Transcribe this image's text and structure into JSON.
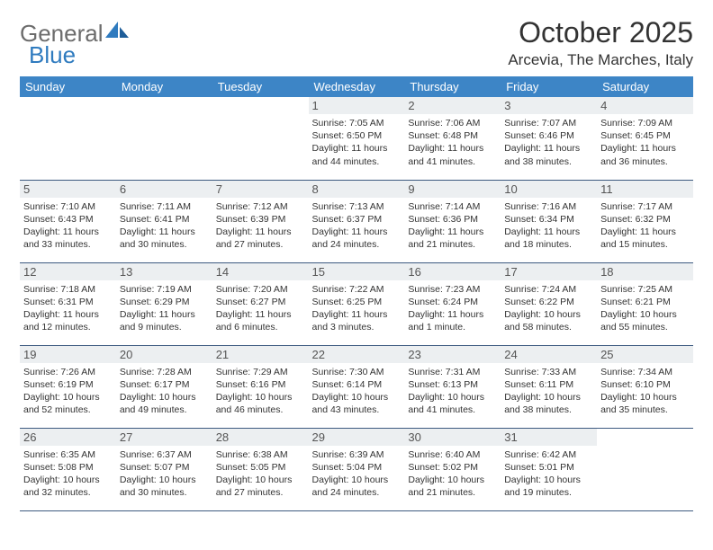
{
  "logo": {
    "part1": "General",
    "part2": "Blue"
  },
  "title": "October 2025",
  "subtitle": "Arcevia, The Marches, Italy",
  "colors": {
    "header_bg": "#3d85c6",
    "header_fg": "#ffffff",
    "daynum_bg": "#eceff1",
    "border": "#3d5a80",
    "logo_gray": "#6c6c6c",
    "logo_blue": "#2f7bbf"
  },
  "day_headers": [
    "Sunday",
    "Monday",
    "Tuesday",
    "Wednesday",
    "Thursday",
    "Friday",
    "Saturday"
  ],
  "weeks": [
    [
      null,
      null,
      null,
      {
        "n": "1",
        "sr": "7:05 AM",
        "ss": "6:50 PM",
        "dl": "11 hours and 44 minutes."
      },
      {
        "n": "2",
        "sr": "7:06 AM",
        "ss": "6:48 PM",
        "dl": "11 hours and 41 minutes."
      },
      {
        "n": "3",
        "sr": "7:07 AM",
        "ss": "6:46 PM",
        "dl": "11 hours and 38 minutes."
      },
      {
        "n": "4",
        "sr": "7:09 AM",
        "ss": "6:45 PM",
        "dl": "11 hours and 36 minutes."
      }
    ],
    [
      {
        "n": "5",
        "sr": "7:10 AM",
        "ss": "6:43 PM",
        "dl": "11 hours and 33 minutes."
      },
      {
        "n": "6",
        "sr": "7:11 AM",
        "ss": "6:41 PM",
        "dl": "11 hours and 30 minutes."
      },
      {
        "n": "7",
        "sr": "7:12 AM",
        "ss": "6:39 PM",
        "dl": "11 hours and 27 minutes."
      },
      {
        "n": "8",
        "sr": "7:13 AM",
        "ss": "6:37 PM",
        "dl": "11 hours and 24 minutes."
      },
      {
        "n": "9",
        "sr": "7:14 AM",
        "ss": "6:36 PM",
        "dl": "11 hours and 21 minutes."
      },
      {
        "n": "10",
        "sr": "7:16 AM",
        "ss": "6:34 PM",
        "dl": "11 hours and 18 minutes."
      },
      {
        "n": "11",
        "sr": "7:17 AM",
        "ss": "6:32 PM",
        "dl": "11 hours and 15 minutes."
      }
    ],
    [
      {
        "n": "12",
        "sr": "7:18 AM",
        "ss": "6:31 PM",
        "dl": "11 hours and 12 minutes."
      },
      {
        "n": "13",
        "sr": "7:19 AM",
        "ss": "6:29 PM",
        "dl": "11 hours and 9 minutes."
      },
      {
        "n": "14",
        "sr": "7:20 AM",
        "ss": "6:27 PM",
        "dl": "11 hours and 6 minutes."
      },
      {
        "n": "15",
        "sr": "7:22 AM",
        "ss": "6:25 PM",
        "dl": "11 hours and 3 minutes."
      },
      {
        "n": "16",
        "sr": "7:23 AM",
        "ss": "6:24 PM",
        "dl": "11 hours and 1 minute."
      },
      {
        "n": "17",
        "sr": "7:24 AM",
        "ss": "6:22 PM",
        "dl": "10 hours and 58 minutes."
      },
      {
        "n": "18",
        "sr": "7:25 AM",
        "ss": "6:21 PM",
        "dl": "10 hours and 55 minutes."
      }
    ],
    [
      {
        "n": "19",
        "sr": "7:26 AM",
        "ss": "6:19 PM",
        "dl": "10 hours and 52 minutes."
      },
      {
        "n": "20",
        "sr": "7:28 AM",
        "ss": "6:17 PM",
        "dl": "10 hours and 49 minutes."
      },
      {
        "n": "21",
        "sr": "7:29 AM",
        "ss": "6:16 PM",
        "dl": "10 hours and 46 minutes."
      },
      {
        "n": "22",
        "sr": "7:30 AM",
        "ss": "6:14 PM",
        "dl": "10 hours and 43 minutes."
      },
      {
        "n": "23",
        "sr": "7:31 AM",
        "ss": "6:13 PM",
        "dl": "10 hours and 41 minutes."
      },
      {
        "n": "24",
        "sr": "7:33 AM",
        "ss": "6:11 PM",
        "dl": "10 hours and 38 minutes."
      },
      {
        "n": "25",
        "sr": "7:34 AM",
        "ss": "6:10 PM",
        "dl": "10 hours and 35 minutes."
      }
    ],
    [
      {
        "n": "26",
        "sr": "6:35 AM",
        "ss": "5:08 PM",
        "dl": "10 hours and 32 minutes."
      },
      {
        "n": "27",
        "sr": "6:37 AM",
        "ss": "5:07 PM",
        "dl": "10 hours and 30 minutes."
      },
      {
        "n": "28",
        "sr": "6:38 AM",
        "ss": "5:05 PM",
        "dl": "10 hours and 27 minutes."
      },
      {
        "n": "29",
        "sr": "6:39 AM",
        "ss": "5:04 PM",
        "dl": "10 hours and 24 minutes."
      },
      {
        "n": "30",
        "sr": "6:40 AM",
        "ss": "5:02 PM",
        "dl": "10 hours and 21 minutes."
      },
      {
        "n": "31",
        "sr": "6:42 AM",
        "ss": "5:01 PM",
        "dl": "10 hours and 19 minutes."
      },
      null
    ]
  ],
  "labels": {
    "sunrise": "Sunrise: ",
    "sunset": "Sunset: ",
    "daylight": "Daylight: "
  }
}
